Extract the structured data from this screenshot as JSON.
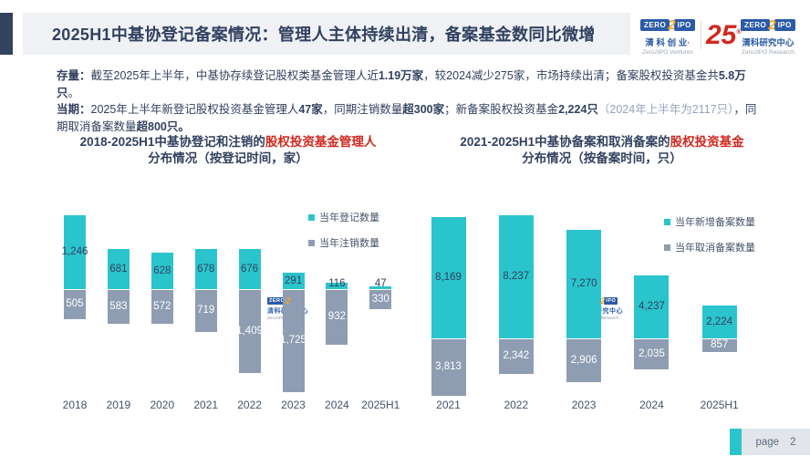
{
  "header": {
    "title": "2025H1中基协登记备案情况：管理人主体持续出清，备案基金数同比微增",
    "logo_ventures": {
      "zero": "ZERO",
      "two": "2",
      "ipo": "IPO",
      "cn": "清 科 创 业",
      "dot": "·",
      "en": "Zero2IPO Ventures"
    },
    "anniversary": "25",
    "anniversary_mark": "®",
    "logo_research": {
      "zero": "ZERO",
      "two": "2",
      "ipo": "IPO",
      "cn": "清科研究中心",
      "en": "Zero2IPO Research"
    }
  },
  "summary": {
    "p1_label": "存量：",
    "p1_t1": "截至2025年上半年，中基协存续登记股权类基金管理人近",
    "p1_b1": "1.19万家",
    "p1_t2": "，较2024减少275家，市场持续出清；备案股权投资基金共",
    "p1_b2": "5.8万只",
    "p1_t3": "。",
    "p2_label": "当期：",
    "p2_t1": "2025年上半年新登记股权投资基金管理人",
    "p2_b1": "47家",
    "p2_t2": "，同期注销数量",
    "p2_b2": "超300家",
    "p2_t3": "；新备案股权投资基金",
    "p2_b3": "2,224只",
    "p2_gray": "（2024年上半年为2117只）",
    "p2_t4": "，同期取消备案数量",
    "p2_b4": "超800只。"
  },
  "chart_data": [
    {
      "type": "bar",
      "subtype": "diverging-stacked",
      "title_line1": "2018-2025H1中基协登记和注销的",
      "title_line1_red": "股权投资基金管理人",
      "title_line2": "分布情况（按登记时间，家）",
      "categories": [
        "2018",
        "2019",
        "2020",
        "2021",
        "2022",
        "2023",
        "2024",
        "2025H1"
      ],
      "series": [
        {
          "name": "当年登记数量",
          "direction": "up",
          "color": "#2AC4CC",
          "values": [
            1246,
            681,
            628,
            678,
            676,
            291,
            116,
            47
          ]
        },
        {
          "name": "当年注销数量",
          "direction": "down",
          "color": "#8E9DB2",
          "values": [
            505,
            583,
            572,
            719,
            1409,
            1725,
            932,
            330
          ]
        }
      ],
      "legend_position": "top-right",
      "value_labels": "on",
      "axis": "none"
    },
    {
      "type": "bar",
      "subtype": "diverging-stacked",
      "title_line1": "2021-2025H1中基协备案和取消备案的",
      "title_line1_red": "股权投资基金",
      "title_line2": "分布情况（按备案时间，只）",
      "categories": [
        "2021",
        "2022",
        "2023",
        "2024",
        "2025H1"
      ],
      "series": [
        {
          "name": "当年新增备案数量",
          "direction": "up",
          "color": "#2AC4CC",
          "values": [
            8169,
            8237,
            7270,
            4237,
            2224
          ]
        },
        {
          "name": "当年取消备案数量",
          "direction": "down",
          "color": "#8E9DB2",
          "values": [
            3813,
            2342,
            2906,
            2035,
            857
          ]
        }
      ],
      "legend_position": "top-right",
      "value_labels": "on",
      "axis": "none"
    }
  ],
  "watermark": {
    "zero": "ZERO",
    "two": "2",
    "ipo": "IPO",
    "cn": "清科研究中心",
    "en": "Zero2IPO Research"
  },
  "footer": {
    "page_label": "page",
    "page_number": "2"
  },
  "colors": {
    "teal": "#2AC4CC",
    "bar_gray": "#8E9DB2",
    "navy": "#31415F",
    "red": "#D0281E",
    "note_gray": "#97A5B8",
    "header_bg": "#EFF1F4",
    "value_label_up": "#31415F",
    "value_label_down": "#FFFFFF"
  }
}
